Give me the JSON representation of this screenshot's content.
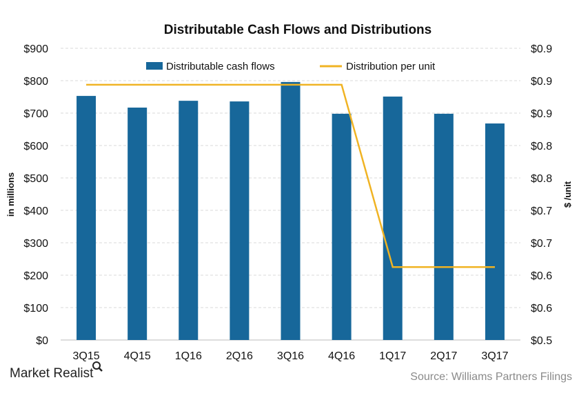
{
  "chart_data": {
    "type": "bar+line",
    "title": "Distributable Cash Flows and Distributions",
    "categories": [
      "3Q15",
      "4Q15",
      "1Q16",
      "2Q16",
      "3Q16",
      "4Q16",
      "1Q17",
      "2Q17",
      "3Q17"
    ],
    "series": [
      {
        "name": "Distributable cash flows",
        "type": "bar",
        "axis": "left",
        "color": "#17679a",
        "values": [
          753,
          717,
          738,
          736,
          796,
          698,
          751,
          698,
          668
        ]
      },
      {
        "name": "Distribution per unit",
        "type": "line",
        "axis": "right",
        "color": "#f0b323",
        "values": [
          0.85,
          0.85,
          0.85,
          0.85,
          0.85,
          0.85,
          0.6,
          0.6,
          0.6
        ]
      }
    ],
    "ylabel": "in millions",
    "ylabel_right": "$ /unit",
    "ylim": [
      0,
      900
    ],
    "ylim_right": [
      0.5,
      0.9
    ],
    "yticks": [
      "$0",
      "$100",
      "$200",
      "$300",
      "$400",
      "$500",
      "$600",
      "$700",
      "$800",
      "$900"
    ],
    "yticks_right": [
      "$0.5",
      "$0.6",
      "$0.6",
      "$0.7",
      "$0.7",
      "$0.8",
      "$0.8",
      "$0.9",
      "$0.9",
      "$0.9"
    ],
    "grid": true,
    "legend_placement": "top"
  },
  "footer": {
    "logo": "Market Realist",
    "source": "Source: Williams Partners Filings"
  }
}
